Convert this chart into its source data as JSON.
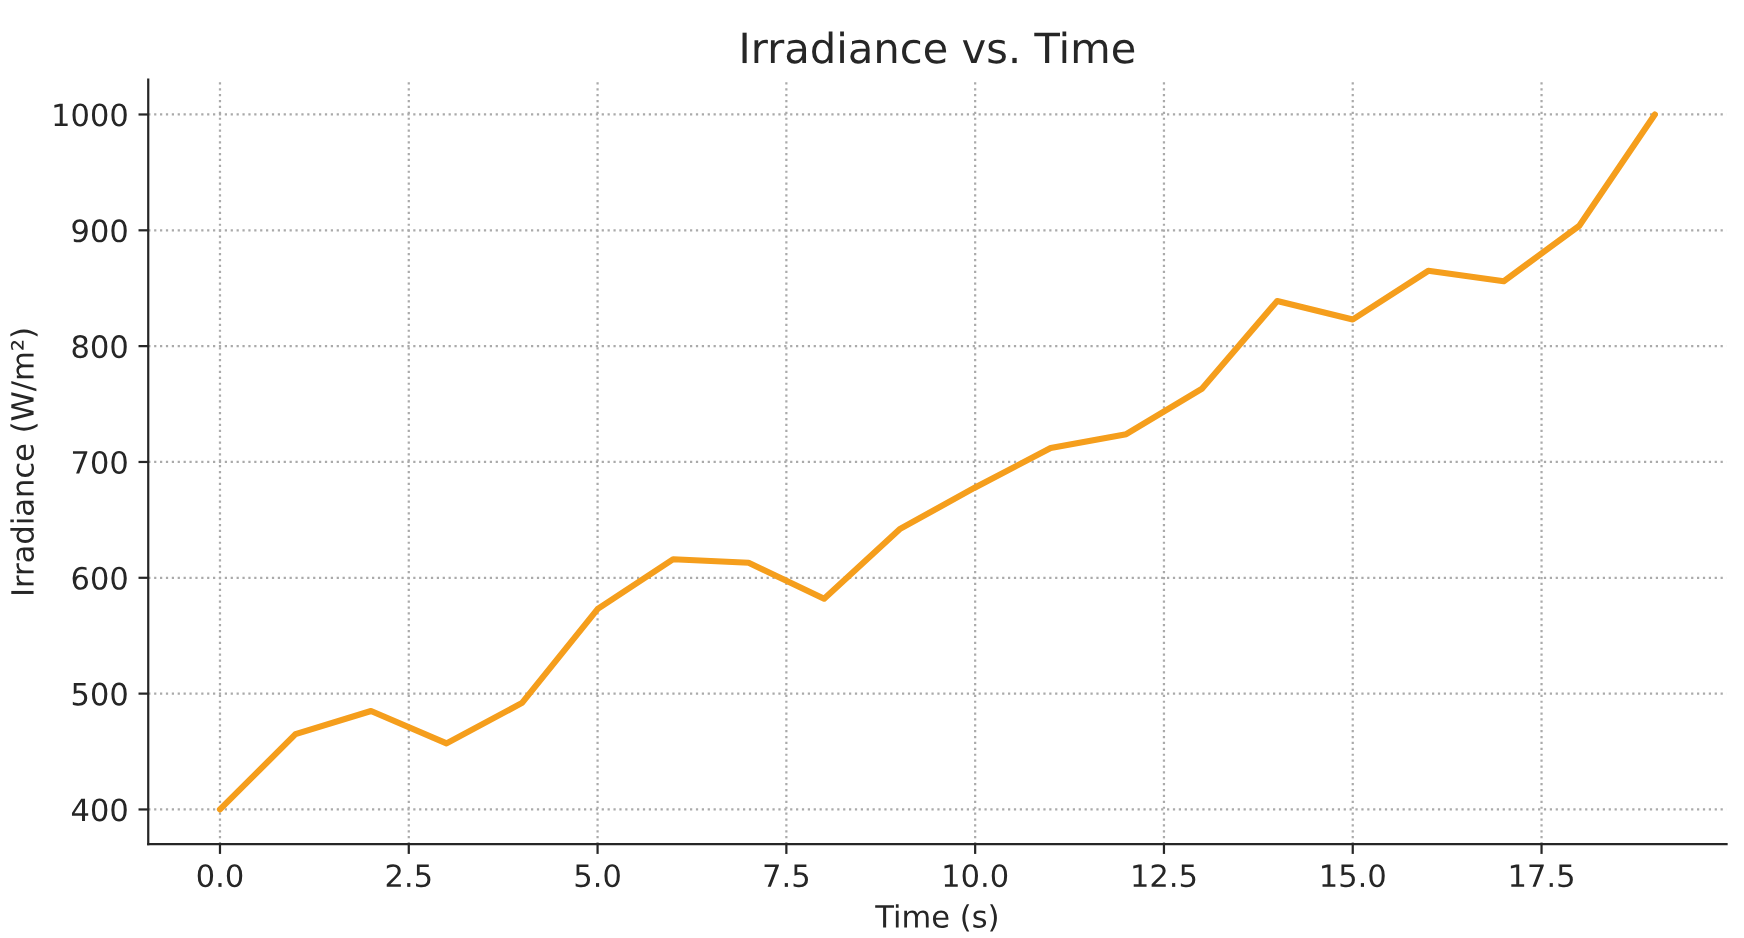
{
  "chart_data": {
    "type": "line",
    "title": "Irradiance vs. Time",
    "xlabel": "Time (s)",
    "ylabel": "Irradiance (W/m²)",
    "x": [
      0,
      1,
      2,
      3,
      4,
      5,
      6,
      7,
      8,
      9,
      10,
      11,
      12,
      13,
      14,
      15,
      16,
      17,
      18,
      19
    ],
    "series": [
      {
        "color": "#f59e1c",
        "values": [
          400,
          465,
          485,
          457,
          492,
          573,
          616,
          613,
          582,
          642,
          678,
          712,
          724,
          763,
          839,
          823,
          865,
          856,
          904,
          1000
        ]
      }
    ],
    "xlim": [
      -0.95,
      19.95
    ],
    "xticks": [
      {
        "value": 0,
        "label": "0.0"
      },
      {
        "value": 2.5,
        "label": "2.5"
      },
      {
        "value": 5,
        "label": "5.0"
      },
      {
        "value": 7.5,
        "label": "7.5"
      },
      {
        "value": 10,
        "label": "10.0"
      },
      {
        "value": 12.5,
        "label": "12.5"
      },
      {
        "value": 15,
        "label": "15.0"
      },
      {
        "value": 17.5,
        "label": "17.5"
      }
    ],
    "ylim": [
      370,
      1030
    ],
    "yticks": [
      400,
      500,
      600,
      700,
      800,
      900,
      1000
    ],
    "grid": true,
    "marker": "none",
    "line_style": "solid"
  }
}
